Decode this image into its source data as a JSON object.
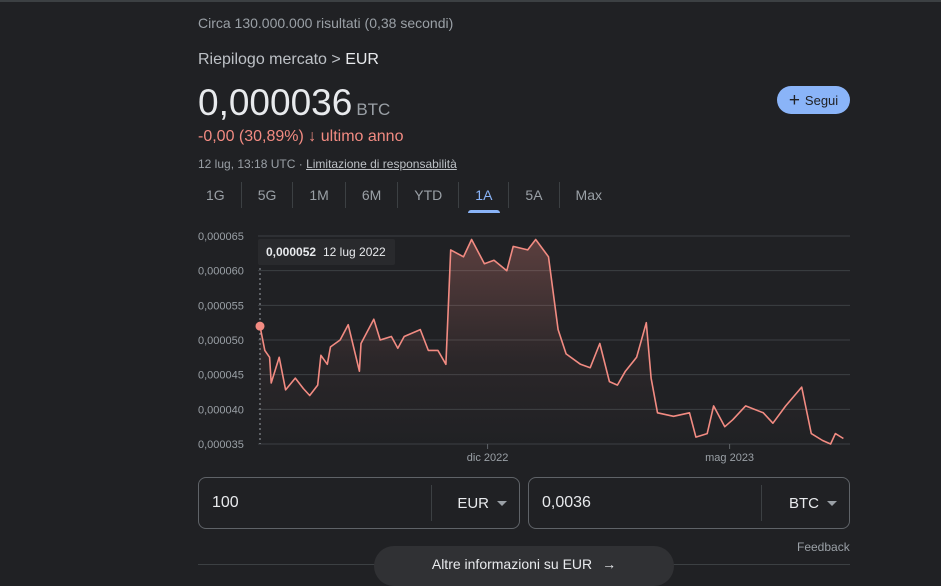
{
  "search": {
    "stats": "Circa 130.000.000 risultati (0,38 secondi)"
  },
  "header": {
    "breadcrumb_prefix": "Riepilogo mercato >",
    "breadcrumb_current": "EUR",
    "price": "0,000036",
    "unit": "BTC",
    "change": "-0,00 (30,89%)",
    "change_period": "ultimo anno",
    "timestamp": "12 lug, 13:18 UTC ·",
    "disclaimer": "Limitazione di responsabilità",
    "follow_label": "Segui"
  },
  "tabs": [
    {
      "label": "1G"
    },
    {
      "label": "5G"
    },
    {
      "label": "1M"
    },
    {
      "label": "6M"
    },
    {
      "label": "YTD"
    },
    {
      "label": "1A",
      "active": true
    },
    {
      "label": "5A"
    },
    {
      "label": "Max"
    }
  ],
  "colors": {
    "line": "#f28b82",
    "accent": "#8ab4f8",
    "negative": "#f28b82",
    "background": "#202124"
  },
  "chart_data": {
    "type": "area",
    "ylim": [
      3.5e-05,
      6.5e-05
    ],
    "y_ticks": [
      "0,000065",
      "0,000060",
      "0,000055",
      "0,000050",
      "0,000045",
      "0,000040",
      "0,000035"
    ],
    "y_tick_values": [
      6.5e-05,
      6e-05,
      5.5e-05,
      5e-05,
      4.5e-05,
      4e-05,
      3.5e-05
    ],
    "x_ticks": [
      {
        "label": "dic 2022",
        "date": "2022-12-01"
      },
      {
        "label": "mag 2023",
        "date": "2023-05-01"
      }
    ],
    "xlim": [
      "2022-07-12",
      "2023-07-12"
    ],
    "grid": true,
    "tooltip": {
      "value": "0,000052",
      "date": "12 lug 2022"
    },
    "points": [
      [
        "2022-07-12",
        5.2e-05
      ],
      [
        "2022-07-15",
        4.85e-05
      ],
      [
        "2022-07-18",
        4.75e-05
      ],
      [
        "2022-07-19",
        4.38e-05
      ],
      [
        "2022-07-24",
        4.75e-05
      ],
      [
        "2022-07-28",
        4.28e-05
      ],
      [
        "2022-08-03",
        4.45e-05
      ],
      [
        "2022-08-08",
        4.3e-05
      ],
      [
        "2022-08-12",
        4.2e-05
      ],
      [
        "2022-08-17",
        4.35e-05
      ],
      [
        "2022-08-19",
        4.78e-05
      ],
      [
        "2022-08-23",
        4.65e-05
      ],
      [
        "2022-08-25",
        4.9e-05
      ],
      [
        "2022-08-31",
        5e-05
      ],
      [
        "2022-09-05",
        5.22e-05
      ],
      [
        "2022-09-12",
        4.55e-05
      ],
      [
        "2022-09-13",
        4.95e-05
      ],
      [
        "2022-09-21",
        5.3e-05
      ],
      [
        "2022-09-25",
        5e-05
      ],
      [
        "2022-10-02",
        5.05e-05
      ],
      [
        "2022-10-06",
        4.88e-05
      ],
      [
        "2022-10-10",
        5.05e-05
      ],
      [
        "2022-10-20",
        5.15e-05
      ],
      [
        "2022-10-25",
        4.85e-05
      ],
      [
        "2022-10-31",
        4.85e-05
      ],
      [
        "2022-11-05",
        4.65e-05
      ],
      [
        "2022-11-08",
        6.3e-05
      ],
      [
        "2022-11-16",
        6.2e-05
      ],
      [
        "2022-11-21",
        6.45e-05
      ],
      [
        "2022-11-29",
        6.1e-05
      ],
      [
        "2022-12-05",
        6.15e-05
      ],
      [
        "2022-12-13",
        6e-05
      ],
      [
        "2022-12-17",
        6.35e-05
      ],
      [
        "2022-12-26",
        6.3e-05
      ],
      [
        "2022-12-31",
        6.45e-05
      ],
      [
        "2023-01-08",
        6.2e-05
      ],
      [
        "2023-01-14",
        5.15e-05
      ],
      [
        "2023-01-19",
        4.8e-05
      ],
      [
        "2023-01-28",
        4.65e-05
      ],
      [
        "2023-02-03",
        4.6e-05
      ],
      [
        "2023-02-09",
        4.95e-05
      ],
      [
        "2023-02-15",
        4.4e-05
      ],
      [
        "2023-02-20",
        4.35e-05
      ],
      [
        "2023-02-25",
        4.55e-05
      ],
      [
        "2023-03-04",
        4.75e-05
      ],
      [
        "2023-03-10",
        5.25e-05
      ],
      [
        "2023-03-13",
        4.45e-05
      ],
      [
        "2023-03-17",
        3.95e-05
      ],
      [
        "2023-03-27",
        3.9e-05
      ],
      [
        "2023-04-06",
        3.95e-05
      ],
      [
        "2023-04-10",
        3.6e-05
      ],
      [
        "2023-04-17",
        3.65e-05
      ],
      [
        "2023-04-21",
        4.05e-05
      ],
      [
        "2023-04-28",
        3.75e-05
      ],
      [
        "2023-05-03",
        3.85e-05
      ],
      [
        "2023-05-11",
        4.05e-05
      ],
      [
        "2023-05-22",
        3.95e-05
      ],
      [
        "2023-05-28",
        3.8e-05
      ],
      [
        "2023-06-05",
        4.05e-05
      ],
      [
        "2023-06-15",
        4.32e-05
      ],
      [
        "2023-06-21",
        3.65e-05
      ],
      [
        "2023-06-28",
        3.55e-05
      ],
      [
        "2023-07-03",
        3.5e-05
      ],
      [
        "2023-07-06",
        3.65e-05
      ],
      [
        "2023-07-11",
        3.58e-05
      ]
    ]
  },
  "converter": {
    "from_value": "100",
    "from_currency": "EUR",
    "to_value": "0,0036",
    "to_currency": "BTC"
  },
  "footer": {
    "feedback": "Feedback",
    "more_label": "Altre informazioni su EUR"
  }
}
